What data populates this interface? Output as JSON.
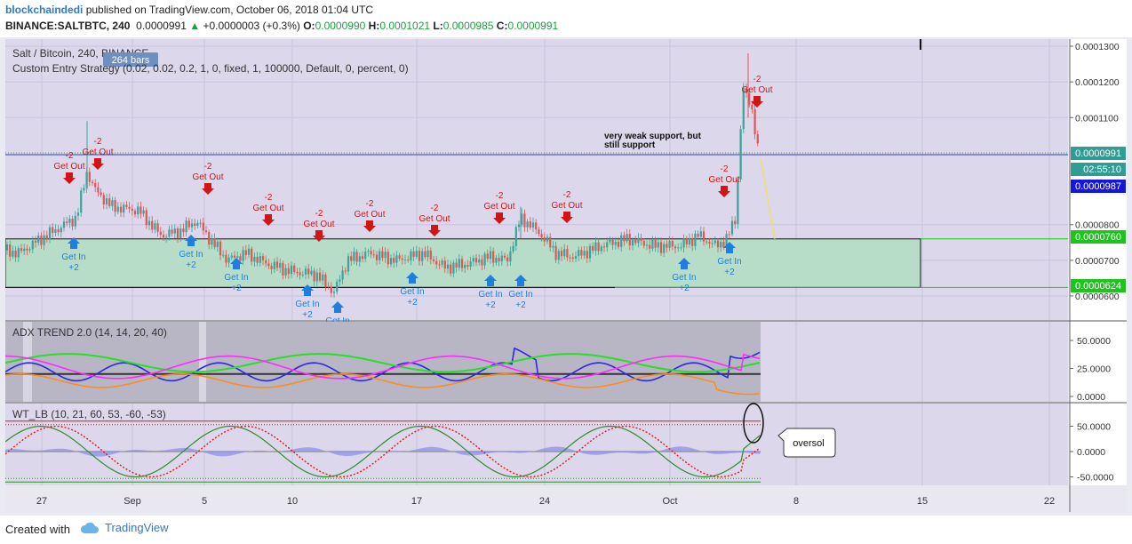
{
  "header": {
    "user": "blockchaindedi",
    "published": "published on TradingView.com, October 06, 2018 01:04 UTC",
    "symbol": "BINANCE:SALTBTC, 240",
    "last": "0.0000991",
    "arrow": "▲",
    "change": "+0.0000003 (+0.3%)",
    "o_label": "O:",
    "o": "0.0000990",
    "h_label": "H:",
    "h": "0.0001021",
    "l_label": "L:",
    "l": "0.0000985",
    "c_label": "C:",
    "c": "0.0000991"
  },
  "footer": {
    "created_with": "Created with",
    "brand": "TradingView"
  },
  "chart_data": [
    {
      "type": "candlestick",
      "title": "Salt / Bitcoin, 240, BINANCE",
      "bars_badge": "264 bars",
      "study": "Custom Entry Strategy (0.02, 0.02, 0.2, 1, 0, fixed, 1, 100000, Default, 0, percent, 0)",
      "x_ticks": [
        "27",
        "Sep",
        "5",
        "10",
        "17",
        "24",
        "Oct",
        "8",
        "15",
        "22"
      ],
      "y_ticks": [
        "0.0001300",
        "0.0001200",
        "0.0001100",
        "0.0000800",
        "0.0000700",
        "0.0000600"
      ],
      "price_labels": [
        {
          "value": "0.0000991",
          "color": "#2e9e95"
        },
        {
          "value": "02:55:10",
          "color": "#2e9e95"
        },
        {
          "value": "0.0000987",
          "color": "#1515e0"
        },
        {
          "value": "0.0000760",
          "color": "#1cc41c"
        },
        {
          "value": "0.0000624",
          "color": "#1cc41c"
        }
      ],
      "support_zone": {
        "top": 7.6e-05,
        "bottom": 6.24e-05,
        "color": "#b7ddc8"
      },
      "annotation": [
        "very weak support, but",
        "still support"
      ],
      "signals_out": [
        {
          "qty": "-2",
          "label": "Get Out"
        },
        {
          "qty": "-2",
          "label": "Get Out"
        },
        {
          "qty": "-2",
          "label": "Get Out"
        },
        {
          "qty": "-2",
          "label": "Get Out"
        },
        {
          "qty": "-2",
          "label": "Get Out"
        },
        {
          "qty": "-2",
          "label": "Get Out"
        },
        {
          "qty": "-2",
          "label": "Get Out"
        },
        {
          "qty": "-2",
          "label": "Get Out"
        },
        {
          "qty": "-2",
          "label": "Get Out"
        },
        {
          "qty": "-2",
          "label": "Get Out"
        },
        {
          "qty": "-2",
          "label": "Get Out"
        }
      ],
      "signals_in": [
        {
          "label": "Get In",
          "qty": "+2"
        },
        {
          "label": "Get In",
          "qty": "+2"
        },
        {
          "label": "Get In",
          "qty": "+2"
        },
        {
          "label": "Get In",
          "qty": "+2"
        },
        {
          "label": "Get In",
          "qty": ""
        },
        {
          "label": "Get In",
          "qty": "+2"
        },
        {
          "label": "Get In",
          "qty": "+2"
        },
        {
          "label": "Get In",
          "qty": "+2"
        },
        {
          "label": "Get In",
          "qty": "+2"
        },
        {
          "label": "Get In",
          "qty": "+2"
        }
      ]
    },
    {
      "type": "line",
      "title": "ADX TREND 2.0 (14, 14, 20, 40)",
      "y_ticks": [
        "50.0000",
        "25.0000",
        "0.0000"
      ],
      "series_colors": [
        "#2a2ae0",
        "#ff8c1a",
        "#25e025",
        "#ff2aff",
        "#333333"
      ]
    },
    {
      "type": "line",
      "title": "WT_LB (10, 21, 60, 53, -60, -53)",
      "y_ticks": [
        "50.0000",
        "0.0000",
        "-50.0000"
      ],
      "callout": "oversol",
      "series_colors": [
        "#2e8b2e",
        "#e01a1a",
        "#8a8ae8"
      ]
    }
  ]
}
